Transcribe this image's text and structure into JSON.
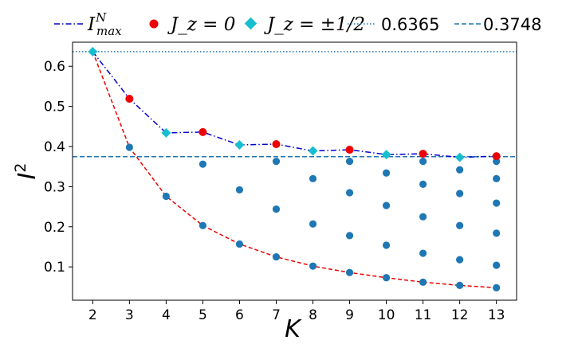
{
  "chart_data": {
    "type": "scatter",
    "xlabel": "K",
    "ylabel": "I",
    "ylabel_superscript": "2",
    "xlim": [
      1.45,
      13.55
    ],
    "ylim": [
      0.017,
      0.66
    ],
    "xticks": [
      2,
      3,
      4,
      5,
      6,
      7,
      8,
      9,
      10,
      11,
      12,
      13
    ],
    "yticks": [
      0.1,
      0.2,
      0.3,
      0.4,
      0.5,
      0.6
    ],
    "ytick_labels": [
      "0.1",
      "0.2",
      "0.3",
      "0.4",
      "0.5",
      "0.6"
    ],
    "grid": false,
    "legend_position": "top (outside plot)",
    "legend": {
      "imax": {
        "base": "I",
        "sup": "N",
        "sub": "max"
      },
      "jz0": "J_z = 0",
      "jzhalf": "J_z = ±1/2",
      "h1": "0.6365",
      "h2": "0.3748"
    },
    "colors": {
      "imax_line": "#0000cc",
      "lower_line": "#ee0000",
      "jz0_marker": "#ee0000",
      "jzhalf_marker": "#17becf",
      "dots": "#1f77b4",
      "hline": "#1f77b4"
    },
    "hlines": [
      {
        "name": "0.6365",
        "y": 0.6365,
        "style": "dotted"
      },
      {
        "name": "0.3748",
        "y": 0.3748,
        "style": "dashed"
      }
    ],
    "imax_line": {
      "x": [
        2,
        3,
        4,
        5,
        6,
        7,
        8,
        9,
        10,
        11,
        12,
        13
      ],
      "y": [
        0.6365,
        0.519,
        0.434,
        0.436,
        0.404,
        0.406,
        0.389,
        0.392,
        0.38,
        0.382,
        0.373,
        0.376
      ]
    },
    "jz0_points": {
      "x": [
        3,
        5,
        7,
        9,
        11,
        13
      ],
      "y": [
        0.519,
        0.436,
        0.406,
        0.392,
        0.382,
        0.376
      ]
    },
    "jzhalf_points": {
      "x": [
        2,
        4,
        6,
        8,
        10,
        12
      ],
      "y": [
        0.6365,
        0.434,
        0.404,
        0.389,
        0.38,
        0.373
      ]
    },
    "lower_line": {
      "x": [
        2,
        3,
        4,
        5,
        6,
        7,
        8,
        9,
        10,
        11,
        12,
        13
      ],
      "y": [
        0.6365,
        0.398,
        0.276,
        0.203,
        0.157,
        0.125,
        0.102,
        0.086,
        0.073,
        0.062,
        0.054,
        0.048
      ]
    },
    "dots": [
      {
        "x": 3,
        "y": 0.398
      },
      {
        "x": 4,
        "y": 0.276
      },
      {
        "x": 5,
        "y": 0.356
      },
      {
        "x": 5,
        "y": 0.203
      },
      {
        "x": 6,
        "y": 0.292
      },
      {
        "x": 6,
        "y": 0.157
      },
      {
        "x": 7,
        "y": 0.363
      },
      {
        "x": 7,
        "y": 0.244
      },
      {
        "x": 7,
        "y": 0.125
      },
      {
        "x": 8,
        "y": 0.32
      },
      {
        "x": 8,
        "y": 0.207
      },
      {
        "x": 8,
        "y": 0.102
      },
      {
        "x": 9,
        "y": 0.363
      },
      {
        "x": 9,
        "y": 0.285
      },
      {
        "x": 9,
        "y": 0.178
      },
      {
        "x": 9,
        "y": 0.086
      },
      {
        "x": 10,
        "y": 0.334
      },
      {
        "x": 10,
        "y": 0.253
      },
      {
        "x": 10,
        "y": 0.154
      },
      {
        "x": 10,
        "y": 0.073
      },
      {
        "x": 11,
        "y": 0.363
      },
      {
        "x": 11,
        "y": 0.306
      },
      {
        "x": 11,
        "y": 0.225
      },
      {
        "x": 11,
        "y": 0.134
      },
      {
        "x": 11,
        "y": 0.062
      },
      {
        "x": 12,
        "y": 0.342
      },
      {
        "x": 12,
        "y": 0.283
      },
      {
        "x": 12,
        "y": 0.203
      },
      {
        "x": 12,
        "y": 0.118
      },
      {
        "x": 12,
        "y": 0.054
      },
      {
        "x": 13,
        "y": 0.363
      },
      {
        "x": 13,
        "y": 0.32
      },
      {
        "x": 13,
        "y": 0.259
      },
      {
        "x": 13,
        "y": 0.184
      },
      {
        "x": 13,
        "y": 0.104
      },
      {
        "x": 13,
        "y": 0.048
      }
    ]
  }
}
